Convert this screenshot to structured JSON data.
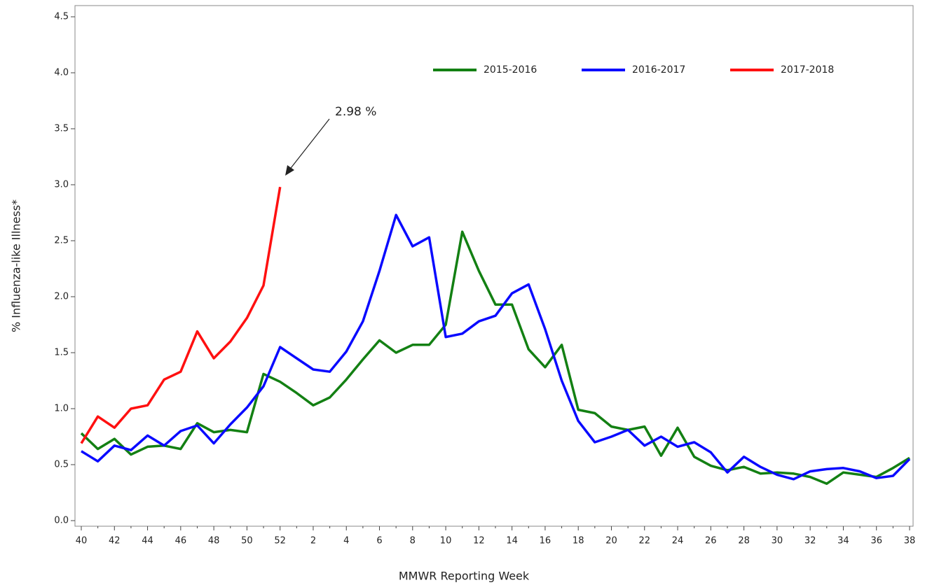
{
  "chart_data": {
    "type": "line",
    "x_label": "MMWR Reporting Week",
    "y_label": "% Influenza-like Illness*",
    "annotation": "2.98 %",
    "legend": "top-right",
    "categories": [
      "40",
      null,
      "42",
      null,
      "44",
      null,
      "46",
      null,
      "48",
      null,
      "50",
      null,
      "52",
      null,
      "2",
      null,
      "4",
      null,
      "6",
      null,
      "8",
      null,
      "10",
      null,
      "12",
      null,
      "14",
      null,
      "16",
      null,
      "18",
      null,
      "20",
      null,
      "22",
      null,
      "24",
      null,
      "26",
      null,
      "28",
      null,
      "30",
      null,
      "32",
      null,
      "34",
      null,
      "36",
      null,
      "38"
    ],
    "ylim": [
      -0.05,
      4.6
    ],
    "yticks": [
      {
        "value": 0,
        "label": "0.0"
      },
      0.5,
      {
        "value": 1,
        "label": "1.0"
      },
      1.5,
      {
        "value": 2,
        "label": "2.0"
      },
      2.5,
      {
        "value": 3,
        "label": "3.0"
      },
      3.5,
      {
        "value": 4,
        "label": "4.0"
      },
      4.5
    ],
    "series": [
      {
        "name": "2015-2016",
        "color": "#138013",
        "values": [
          0.78,
          0.64,
          0.73,
          0.59,
          0.66,
          0.67,
          0.64,
          0.87,
          0.79,
          0.81,
          0.79,
          1.31,
          1.24,
          1.14,
          1.03,
          1.1,
          1.26,
          1.44,
          1.61,
          1.5,
          1.57,
          1.57,
          1.75,
          2.58,
          2.23,
          1.93,
          1.93,
          1.53,
          1.37,
          1.57,
          0.99,
          0.96,
          0.84,
          0.81,
          0.84,
          0.58,
          0.83,
          0.57,
          0.49,
          0.45,
          0.48,
          0.42,
          0.43,
          0.42,
          0.39,
          0.33,
          0.43,
          0.41,
          0.39,
          0.47,
          0.56
        ]
      },
      {
        "name": "2016-2017",
        "color": "#0a0aff",
        "values": [
          0.62,
          0.53,
          0.67,
          0.63,
          0.76,
          0.67,
          0.8,
          0.85,
          0.69,
          0.86,
          1.01,
          1.2,
          1.55,
          1.45,
          1.35,
          1.33,
          1.51,
          1.78,
          2.23,
          2.73,
          2.45,
          2.53,
          1.64,
          1.67,
          1.78,
          1.83,
          2.03,
          2.11,
          1.71,
          1.25,
          0.89,
          0.7,
          0.75,
          0.81,
          0.67,
          0.75,
          0.66,
          0.7,
          0.61,
          0.43,
          0.57,
          0.48,
          0.41,
          0.37,
          0.44,
          0.46,
          0.47,
          0.44,
          0.38,
          0.4,
          0.55
        ]
      },
      {
        "name": "2017-2018",
        "color": "#ff1010",
        "values": [
          0.69,
          0.93,
          0.83,
          1.0,
          1.03,
          1.26,
          1.33,
          1.69,
          1.45,
          1.6,
          1.81,
          2.1,
          2.98,
          null,
          null,
          null,
          null,
          null,
          null,
          null,
          null,
          null,
          null,
          null,
          null,
          null,
          null,
          null,
          null,
          null,
          null,
          null,
          null,
          null,
          null,
          null,
          null,
          null,
          null,
          null,
          null,
          null,
          null,
          null,
          null,
          null,
          null,
          null,
          null,
          null,
          null
        ]
      }
    ]
  }
}
